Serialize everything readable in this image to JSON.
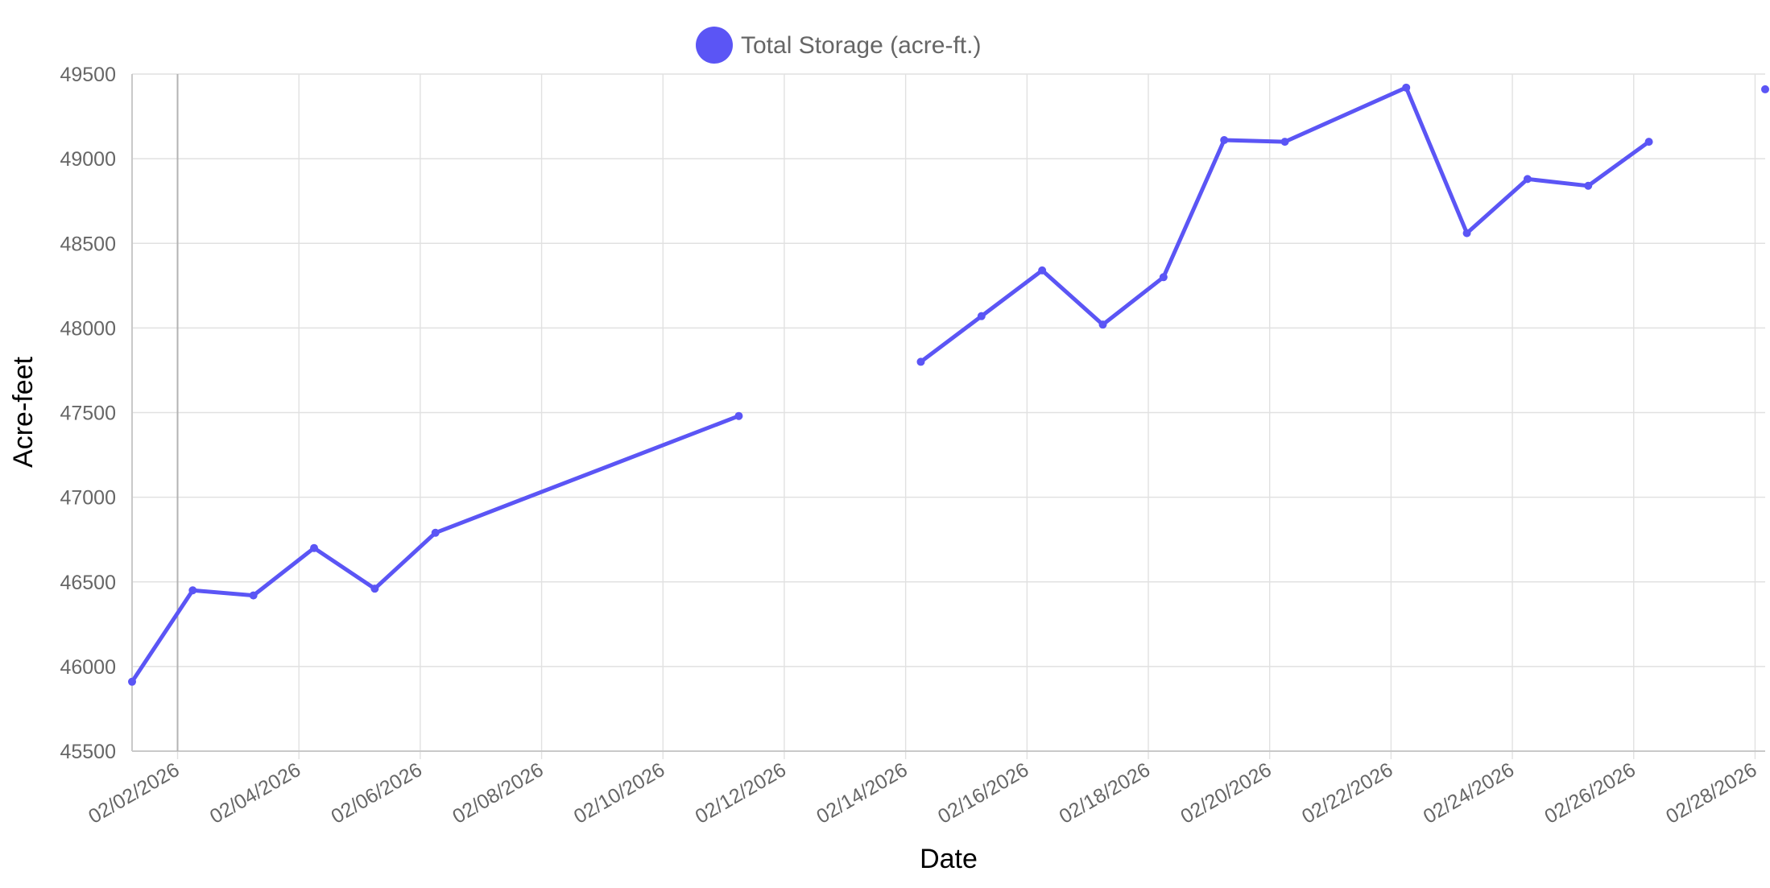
{
  "chart_data": {
    "type": "line",
    "xlabel": "Date",
    "ylabel": "Acre-feet",
    "ylim": [
      45500,
      49500
    ],
    "y_ticks": [
      "49500",
      "49000",
      "48500",
      "48000",
      "47500",
      "47000",
      "46500",
      "46000",
      "45500"
    ],
    "x_ticks": [
      "02/02/2026",
      "02/04/2026",
      "02/06/2026",
      "02/08/2026",
      "02/10/2026",
      "02/12/2026",
      "02/14/2026",
      "02/16/2026",
      "02/18/2026",
      "02/20/2026",
      "02/22/2026",
      "02/24/2026",
      "02/26/2026",
      "02/28/2026"
    ],
    "x_range": [
      "2026-02-01T06:00",
      "2026-02-28T04:00"
    ],
    "grid": true,
    "legend_position": "top-center",
    "series": [
      {
        "name": "Total Storage (acre-ft.)",
        "color": "#5b55f5",
        "segments": [
          [
            {
              "x": "2026-02-01T06:00",
              "y": 45910
            },
            {
              "x": "2026-02-02T06:00",
              "y": 46450
            },
            {
              "x": "2026-02-03T06:00",
              "y": 46420
            },
            {
              "x": "2026-02-04T06:00",
              "y": 46700
            },
            {
              "x": "2026-02-05T06:00",
              "y": 46460
            },
            {
              "x": "2026-02-06T06:00",
              "y": 46790
            },
            {
              "x": "2026-02-11T06:00",
              "y": 47480
            }
          ],
          [
            {
              "x": "2026-02-14T06:00",
              "y": 47800
            },
            {
              "x": "2026-02-15T06:00",
              "y": 48070
            },
            {
              "x": "2026-02-16T06:00",
              "y": 48340
            },
            {
              "x": "2026-02-17T06:00",
              "y": 48020
            },
            {
              "x": "2026-02-18T06:00",
              "y": 48300
            },
            {
              "x": "2026-02-19T06:00",
              "y": 49110
            },
            {
              "x": "2026-02-20T06:00",
              "y": 49100
            },
            {
              "x": "2026-02-22T06:00",
              "y": 49420
            },
            {
              "x": "2026-02-23T06:00",
              "y": 48560
            },
            {
              "x": "2026-02-24T06:00",
              "y": 48880
            },
            {
              "x": "2026-02-25T06:00",
              "y": 48840
            },
            {
              "x": "2026-02-26T06:00",
              "y": 49100
            }
          ],
          [
            {
              "x": "2026-02-28T04:00",
              "y": 49410
            }
          ]
        ]
      }
    ]
  }
}
